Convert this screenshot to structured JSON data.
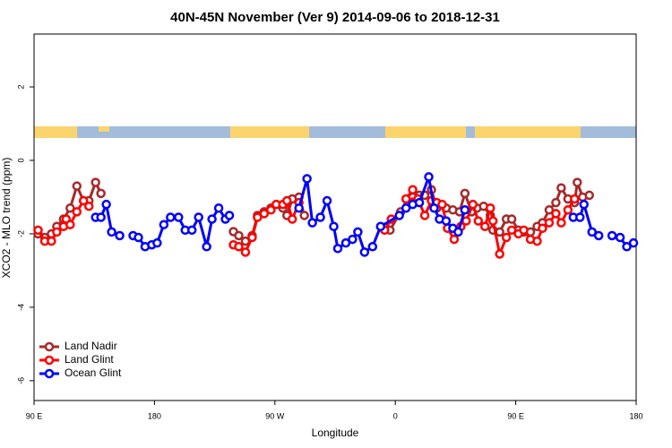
{
  "chart_data": {
    "type": "line",
    "title": "40N-45N November (Ver 9)   2014-09-06 to 2018-12-31",
    "x_label": "Longitude",
    "y_label": "XCO2 - MLO trend (ppm)",
    "xlim": [
      90,
      540
    ],
    "ylim": [
      -6.54,
      3.44
    ],
    "xticks": [
      {
        "value": 90,
        "label": "90 E"
      },
      180,
      {
        "value": 270,
        "label": "90 W"
      },
      {
        "value": 360,
        "label": "0"
      },
      {
        "value": 450,
        "label": "90 E"
      },
      {
        "value": 540,
        "label": "180"
      }
    ],
    "yticks": [
      -6,
      -4,
      -2,
      0,
      2
    ],
    "legend": "bottomleft",
    "series": [
      {
        "name": "Land Nadir",
        "color": "#a52a2a",
        "x": [
          93,
          98,
          103,
          107,
          112,
          117,
          122,
          127,
          131,
          136,
          140,
          190,
          239,
          243,
          248,
          253,
          257,
          262,
          267,
          271,
          276,
          279,
          283,
          288,
          292,
          330,
          356,
          364,
          369,
          373,
          378,
          382,
          387,
          391,
          398,
          403,
          408,
          412,
          417,
          421,
          426,
          431,
          433,
          438,
          443,
          447,
          452,
          456,
          461,
          466,
          470,
          475,
          480,
          484,
          489,
          494,
          496,
          500,
          505
        ],
        "values": [
          -2.0,
          -2.1,
          -2.0,
          -1.8,
          -1.6,
          -1.3,
          -0.7,
          -1.1,
          -1.1,
          -0.6,
          -0.9,
          null,
          -1.94,
          -2.05,
          -2.2,
          -2.05,
          -1.5,
          -1.4,
          -1.3,
          -1.2,
          -1.3,
          -1.5,
          -1.05,
          -1.0,
          -1.5,
          null,
          -1.9,
          -1.4,
          -1.05,
          -1.0,
          -0.95,
          -0.95,
          -0.8,
          -1.3,
          -1.3,
          -1.35,
          -1.4,
          -0.9,
          -1.4,
          -1.3,
          -1.25,
          -1.5,
          -1.9,
          -1.95,
          -1.6,
          -1.6,
          -1.9,
          -1.95,
          -1.95,
          -1.8,
          -1.7,
          -1.35,
          -1.15,
          -0.75,
          -1.05,
          -1.15,
          -0.6,
          -1.0,
          -0.95
        ]
      },
      {
        "name": "Land Glint",
        "color": "#ff0000",
        "x": [
          93,
          98,
          103,
          107,
          112,
          114,
          117,
          122,
          127,
          131,
          190,
          239,
          243,
          248,
          253,
          257,
          262,
          267,
          271,
          276,
          279,
          283,
          288,
          330,
          352,
          357,
          378,
          373,
          368,
          377,
          382,
          387,
          391,
          395,
          399,
          404,
          409,
          413,
          418,
          422,
          427,
          431,
          433,
          438,
          443,
          447,
          452,
          456,
          461,
          466,
          470,
          475,
          480,
          484,
          489,
          494
        ],
        "values": [
          -1.9,
          -2.2,
          -2.2,
          -1.95,
          -1.8,
          -1.6,
          -1.75,
          -1.4,
          -1.1,
          -1.25,
          null,
          -2.3,
          -2.35,
          -2.5,
          -2.1,
          -1.55,
          -1.45,
          -1.35,
          -1.2,
          -1.2,
          -1.1,
          -1.6,
          -1.15,
          null,
          -1.9,
          -1.6,
          null,
          -0.8,
          -1.05,
          -1.05,
          -1.5,
          -1.1,
          -1.15,
          -1.2,
          -1.85,
          -2.15,
          -1.8,
          -1.65,
          -1.2,
          -1.65,
          -1.8,
          -1.3,
          -1.65,
          -2.55,
          -2.1,
          -1.9,
          -2.0,
          -1.9,
          -2.15,
          -2.2,
          -1.85,
          -1.7,
          -1.45,
          -1.7,
          -1.35,
          -1.05
        ]
      },
      {
        "name": "Ocean Glint",
        "color": "#0000ff",
        "x": [
          136,
          140,
          144,
          148,
          154,
          160,
          164,
          168,
          173,
          178,
          182,
          187,
          192,
          198,
          203,
          208,
          213,
          219,
          223,
          228,
          233,
          236,
          260,
          288,
          294,
          298,
          304,
          309,
          314,
          317,
          323,
          328,
          332,
          337,
          343,
          349,
          363,
          368,
          373,
          378,
          385,
          389,
          393,
          398,
          403,
          407,
          412,
          450,
          493,
          498,
          501,
          507,
          512,
          517,
          522,
          528,
          533,
          538
        ],
        "values": [
          -1.55,
          -1.55,
          -1.2,
          -1.95,
          -2.05,
          null,
          -2.05,
          -2.1,
          -2.35,
          -2.3,
          -2.25,
          -1.75,
          -1.55,
          -1.55,
          -1.9,
          -1.9,
          -1.55,
          -2.35,
          -1.6,
          -1.3,
          -1.6,
          -1.5,
          null,
          -1.3,
          -0.5,
          -1.7,
          -1.55,
          -1.1,
          -1.8,
          -2.4,
          -2.25,
          -2.15,
          -1.95,
          -2.5,
          -2.35,
          -1.8,
          -1.5,
          -1.3,
          -1.2,
          -1.15,
          -0.45,
          -1.3,
          -1.6,
          -1.65,
          -1.85,
          -1.95,
          -1.35,
          null,
          -1.55,
          -1.55,
          -1.2,
          -1.95,
          -2.05,
          null,
          -2.05,
          -2.1,
          -2.35,
          -2.25
        ]
      }
    ]
  }
}
